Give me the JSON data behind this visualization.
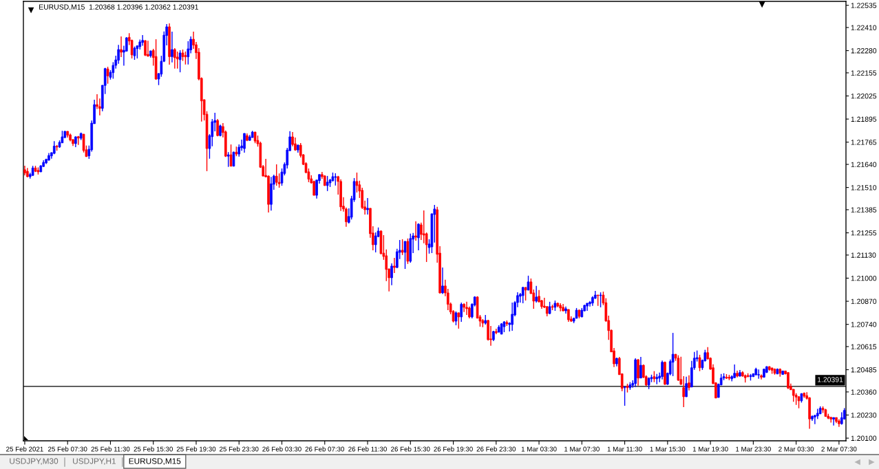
{
  "chart_data": {
    "type": "candlestick",
    "title": "EURUSD,M15  1.20368 1.20396 1.20362 1.20391",
    "categories": [
      "25 Feb 2021",
      null,
      null,
      null,
      null,
      null,
      null,
      null,
      null,
      null,
      null,
      null,
      null,
      null,
      null,
      null,
      "25 Feb 07:30",
      null,
      null,
      null,
      null,
      null,
      null,
      null,
      null,
      null,
      null,
      null,
      null,
      null,
      null,
      null,
      "25 Feb 11:30",
      null,
      null,
      null,
      null,
      null,
      null,
      null,
      null,
      null,
      null,
      null,
      null,
      null,
      null,
      null,
      "25 Feb 15:30",
      null,
      null,
      null,
      null,
      null,
      null,
      null,
      null,
      null,
      null,
      null,
      null,
      null,
      null,
      null,
      "25 Feb 19:30",
      null,
      null,
      null,
      null,
      null,
      null,
      null,
      null,
      null,
      null,
      null,
      null,
      null,
      null,
      null,
      "25 Feb 23:30",
      null,
      null,
      null,
      null,
      null,
      null,
      null,
      null,
      null,
      null,
      null,
      null,
      null,
      null,
      null,
      "26 Feb 03:30",
      null,
      null,
      null,
      null,
      null,
      null,
      null,
      null,
      null,
      null,
      null,
      null,
      null,
      null,
      null,
      "26 Feb 07:30",
      null,
      null,
      null,
      null,
      null,
      null,
      null,
      null,
      null,
      null,
      null,
      null,
      null,
      null,
      null,
      "26 Feb 11:30",
      null,
      null,
      null,
      null,
      null,
      null,
      null,
      null,
      null,
      null,
      null,
      null,
      null,
      null,
      null,
      "26 Feb 15:30",
      null,
      null,
      null,
      null,
      null,
      null,
      null,
      null,
      null,
      null,
      null,
      null,
      null,
      null,
      null,
      "26 Feb 19:30",
      null,
      null,
      null,
      null,
      null,
      null,
      null,
      null,
      null,
      null,
      null,
      null,
      null,
      null,
      null,
      "26 Feb 23:30",
      null,
      null,
      null,
      null,
      null,
      null,
      null,
      null,
      null,
      null,
      null,
      null,
      null,
      null,
      null,
      "1 Mar 03:30",
      null,
      null,
      null,
      null,
      null,
      null,
      null,
      null,
      null,
      null,
      null,
      null,
      null,
      null,
      null,
      "1 Mar 07:30",
      null,
      null,
      null,
      null,
      null,
      null,
      null,
      null,
      null,
      null,
      null,
      null,
      null,
      null,
      null,
      "1 Mar 11:30",
      null,
      null,
      null,
      null,
      null,
      null,
      null,
      null,
      null,
      null,
      null,
      null,
      null,
      null,
      null,
      "1 Mar 15:30",
      null,
      null,
      null,
      null,
      null,
      null,
      null,
      null,
      null,
      null,
      null,
      null,
      null,
      null,
      null,
      "1 Mar 19:30",
      null,
      null,
      null,
      null,
      null,
      null,
      null,
      null,
      null,
      null,
      null,
      null,
      null,
      null,
      null,
      "1 Mar 23:30",
      null,
      null,
      null,
      null,
      null,
      null,
      null,
      null,
      null,
      null,
      null,
      null,
      null,
      null,
      null,
      "2 Mar 03:30",
      null,
      null,
      null,
      null,
      null,
      null,
      null,
      null,
      null,
      null,
      null,
      null,
      null,
      null,
      null,
      "2 Mar 07:30",
      null,
      null
    ],
    "ohlc": [
      [
        1.2161,
        1.21632,
        1.21578,
        1.21591
      ],
      [
        1.21601,
        1.2162,
        1.21568,
        1.21571
      ],
      [
        1.21571,
        1.21593,
        1.2156,
        1.21583
      ],
      [
        1.21578,
        1.21632,
        1.21575,
        1.2162
      ],
      [
        1.2162,
        1.21632,
        1.21597,
        1.21601
      ],
      [
        1.21606,
        1.21623,
        1.21583,
        1.21598
      ],
      [
        1.21598,
        1.21635,
        1.21597,
        1.21632
      ],
      [
        1.21628,
        1.21663,
        1.21626,
        1.21651
      ],
      [
        1.21648,
        1.21672,
        1.21642,
        1.21668
      ],
      [
        1.21664,
        1.21704,
        1.2166,
        1.2169
      ],
      [
        1.21688,
        1.21708,
        1.21672,
        1.21706
      ],
      [
        1.21702,
        1.21771,
        1.21697,
        1.21743
      ],
      [
        1.21742,
        1.21749,
        1.21717,
        1.21738
      ],
      [
        1.21738,
        1.21775,
        1.21733,
        1.21764
      ],
      [
        1.21761,
        1.21829,
        1.2176,
        1.21795
      ],
      [
        1.21791,
        1.21828,
        1.21787,
        1.21826
      ],
      [
        1.21826,
        1.21827,
        1.21791,
        1.21804
      ],
      [
        1.21806,
        1.21813,
        1.2177,
        1.21777
      ],
      [
        1.21779,
        1.21783,
        1.21744,
        1.21757
      ],
      [
        1.21757,
        1.21798,
        1.21737,
        1.21795
      ],
      [
        1.21796,
        1.218,
        1.21749,
        1.21788
      ],
      [
        1.21787,
        1.21819,
        1.21777,
        1.21814
      ],
      [
        1.2181,
        1.21811,
        1.21707,
        1.21718
      ],
      [
        1.21722,
        1.21746,
        1.21682,
        1.21684
      ],
      [
        1.21688,
        1.21746,
        1.21671,
        1.21725
      ],
      [
        1.21722,
        1.21887,
        1.21712,
        1.21872
      ],
      [
        1.21869,
        1.22004,
        1.21868,
        1.21976
      ],
      [
        1.21976,
        1.22035,
        1.21952,
        1.21966
      ],
      [
        1.21965,
        1.22011,
        1.21916,
        1.21955
      ],
      [
        1.21955,
        1.22086,
        1.21939,
        1.22085
      ],
      [
        1.22084,
        1.22183,
        1.22036,
        1.22179
      ],
      [
        1.22177,
        1.22189,
        1.22094,
        1.22138
      ],
      [
        1.2213,
        1.2217,
        1.22117,
        1.22158
      ],
      [
        1.22156,
        1.22215,
        1.22122,
        1.22197
      ],
      [
        1.22197,
        1.22251,
        1.22179,
        1.22228
      ],
      [
        1.22226,
        1.22312,
        1.22206,
        1.22286
      ],
      [
        1.22286,
        1.2236,
        1.22244,
        1.22271
      ],
      [
        1.22271,
        1.22307,
        1.22195,
        1.22282
      ],
      [
        1.22277,
        1.22356,
        1.22275,
        1.22352
      ],
      [
        1.22355,
        1.22378,
        1.22311,
        1.22334
      ],
      [
        1.22338,
        1.22342,
        1.22236,
        1.22256
      ],
      [
        1.22251,
        1.22303,
        1.22228,
        1.22294
      ],
      [
        1.22291,
        1.22309,
        1.22236,
        1.22307
      ],
      [
        1.22302,
        1.22342,
        1.22286,
        1.22329
      ],
      [
        1.22326,
        1.22367,
        1.22307,
        1.22338
      ],
      [
        1.22336,
        1.22339,
        1.22249,
        1.22254
      ],
      [
        1.22259,
        1.22336,
        1.22246,
        1.22249
      ],
      [
        1.22251,
        1.2228,
        1.22241,
        1.22278
      ],
      [
        1.22281,
        1.2229,
        1.22195,
        1.22241
      ],
      [
        1.22247,
        1.22344,
        1.22116,
        1.2212
      ],
      [
        1.2212,
        1.22153,
        1.22086,
        1.22151
      ],
      [
        1.22148,
        1.22251,
        1.22133,
        1.2222
      ],
      [
        1.2222,
        1.22388,
        1.22216,
        1.22367
      ],
      [
        1.22365,
        1.22429,
        1.22309,
        1.22414
      ],
      [
        1.22414,
        1.22433,
        1.22201,
        1.22246
      ],
      [
        1.22246,
        1.22387,
        1.22214,
        1.22286
      ],
      [
        1.22286,
        1.22294,
        1.22179,
        1.2224
      ],
      [
        1.22244,
        1.22275,
        1.22179,
        1.22233
      ],
      [
        1.22229,
        1.22282,
        1.22158,
        1.22267
      ],
      [
        1.22267,
        1.22286,
        1.22222,
        1.22246
      ],
      [
        1.22253,
        1.22275,
        1.22202,
        1.22245
      ],
      [
        1.22245,
        1.22333,
        1.22202,
        1.2229
      ],
      [
        1.22284,
        1.2236,
        1.22265,
        1.22344
      ],
      [
        1.22344,
        1.22387,
        1.2229,
        1.22311
      ],
      [
        1.22313,
        1.22329,
        1.22233,
        1.22268
      ],
      [
        1.22271,
        1.22294,
        1.22113,
        1.2212
      ],
      [
        1.22124,
        1.2213,
        1.21881,
        1.21997
      ],
      [
        1.22004,
        1.22005,
        1.21887,
        1.2192
      ],
      [
        1.21922,
        1.21939,
        1.21602,
        1.21729
      ],
      [
        1.21729,
        1.2181,
        1.21672,
        1.21802
      ],
      [
        1.21796,
        1.21895,
        1.21742,
        1.2188
      ],
      [
        1.21876,
        1.2193,
        1.21826,
        1.21887
      ],
      [
        1.21887,
        1.21895,
        1.21798,
        1.21802
      ],
      [
        1.21802,
        1.21864,
        1.21798,
        1.21857
      ],
      [
        1.21853,
        1.21872,
        1.21792,
        1.21819
      ],
      [
        1.21823,
        1.21831,
        1.21682,
        1.21686
      ],
      [
        1.21686,
        1.21709,
        1.21626,
        1.21694
      ],
      [
        1.21694,
        1.21752,
        1.21628,
        1.2163
      ],
      [
        1.2163,
        1.21712,
        1.21628,
        1.21709
      ],
      [
        1.21709,
        1.2174,
        1.21686,
        1.21698
      ],
      [
        1.21698,
        1.21752,
        1.21684,
        1.21737
      ],
      [
        1.21733,
        1.21779,
        1.21717,
        1.21744
      ],
      [
        1.21729,
        1.21815,
        1.21706,
        1.21814
      ],
      [
        1.21802,
        1.21814,
        1.21771,
        1.21775
      ],
      [
        1.21775,
        1.21806,
        1.21774,
        1.21795
      ],
      [
        1.21791,
        1.21829,
        1.2179,
        1.21822
      ],
      [
        1.21822,
        1.21823,
        1.21759,
        1.21771
      ],
      [
        1.21775,
        1.21802,
        1.2174,
        1.21756
      ],
      [
        1.2176,
        1.21768,
        1.2162,
        1.21624
      ],
      [
        1.21628,
        1.21636,
        1.21573,
        1.21574
      ],
      [
        1.21578,
        1.21671,
        1.21568,
        1.2157
      ],
      [
        1.21574,
        1.21578,
        1.21369,
        1.21415
      ],
      [
        1.21415,
        1.2157,
        1.2138,
        1.21531
      ],
      [
        1.21528,
        1.21582,
        1.21497,
        1.21574
      ],
      [
        1.21574,
        1.2164,
        1.2152,
        1.21539
      ],
      [
        1.21539,
        1.21589,
        1.21509,
        1.21531
      ],
      [
        1.21535,
        1.21617,
        1.2152,
        1.21597
      ],
      [
        1.21589,
        1.21651,
        1.21578,
        1.2164
      ],
      [
        1.21636,
        1.21733,
        1.21617,
        1.21721
      ],
      [
        1.21717,
        1.21827,
        1.21716,
        1.21795
      ],
      [
        1.21795,
        1.21822,
        1.21742,
        1.21752
      ],
      [
        1.21756,
        1.21791,
        1.21717,
        1.21721
      ],
      [
        1.21721,
        1.21752,
        1.21706,
        1.21748
      ],
      [
        1.21748,
        1.2176,
        1.21679,
        1.2169
      ],
      [
        1.21694,
        1.21698,
        1.21636,
        1.2164
      ],
      [
        1.21645,
        1.21652,
        1.2159,
        1.21594
      ],
      [
        1.21598,
        1.21617,
        1.2154,
        1.21557
      ],
      [
        1.21559,
        1.21579,
        1.21532,
        1.21536
      ],
      [
        1.21544,
        1.21548,
        1.21465,
        1.21466
      ],
      [
        1.21466,
        1.21553,
        1.21448,
        1.21552
      ],
      [
        1.21549,
        1.21584,
        1.21532,
        1.21583
      ],
      [
        1.21583,
        1.21598,
        1.21559,
        1.21571
      ],
      [
        1.21575,
        1.21579,
        1.21519,
        1.21521
      ],
      [
        1.21521,
        1.21575,
        1.2149,
        1.2154
      ],
      [
        1.21536,
        1.21559,
        1.21513,
        1.21552
      ],
      [
        1.21548,
        1.21594,
        1.21544,
        1.21571
      ],
      [
        1.21567,
        1.2159,
        1.21521,
        1.21571
      ],
      [
        1.21571,
        1.21575,
        1.2147,
        1.21544
      ],
      [
        1.21544,
        1.21556,
        1.21378,
        1.21401
      ],
      [
        1.21405,
        1.21455,
        1.21374,
        1.21389
      ],
      [
        1.21389,
        1.21397,
        1.21289,
        1.21317
      ],
      [
        1.21314,
        1.21393,
        1.21307,
        1.21347
      ],
      [
        1.21343,
        1.21463,
        1.2133,
        1.21447
      ],
      [
        1.21441,
        1.21563,
        1.21429,
        1.21544
      ],
      [
        1.21544,
        1.21594,
        1.21482,
        1.21521
      ],
      [
        1.21525,
        1.21548,
        1.21451,
        1.2149
      ],
      [
        1.21494,
        1.21509,
        1.21389,
        1.21397
      ],
      [
        1.21401,
        1.21436,
        1.21358,
        1.21385
      ],
      [
        1.21385,
        1.21451,
        1.21358,
        1.21393
      ],
      [
        1.21393,
        1.21394,
        1.21227,
        1.2125
      ],
      [
        1.21254,
        1.21292,
        1.21157,
        1.21188
      ],
      [
        1.21188,
        1.21257,
        1.21145,
        1.21238
      ],
      [
        1.21234,
        1.21285,
        1.2123,
        1.21265
      ],
      [
        1.21265,
        1.21269,
        1.21134,
        1.21138
      ],
      [
        1.21141,
        1.21242,
        1.21103,
        1.21122
      ],
      [
        1.21126,
        1.21161,
        1.20983,
        1.21049
      ],
      [
        1.21052,
        1.21054,
        1.20925,
        1.21002
      ],
      [
        1.21002,
        1.21083,
        1.2096,
        1.21068
      ],
      [
        1.21068,
        1.21114,
        1.21029,
        1.2106
      ],
      [
        1.2106,
        1.21165,
        1.21056,
        1.21149
      ],
      [
        1.21145,
        1.21215,
        1.21107,
        1.21157
      ],
      [
        1.21157,
        1.21219,
        1.2113,
        1.21145
      ],
      [
        1.21145,
        1.21208,
        1.21052,
        1.21207
      ],
      [
        1.21207,
        1.21223,
        1.2108,
        1.21095
      ],
      [
        1.21095,
        1.2125,
        1.21087,
        1.21223
      ],
      [
        1.21219,
        1.21254,
        1.21141,
        1.21238
      ],
      [
        1.21238,
        1.2132,
        1.21211,
        1.2123
      ],
      [
        1.21227,
        1.21308,
        1.21157,
        1.21304
      ],
      [
        1.213,
        1.21312,
        1.21215,
        1.21246
      ],
      [
        1.2125,
        1.21381,
        1.21196,
        1.21242
      ],
      [
        1.2125,
        1.21257,
        1.21091,
        1.21188
      ],
      [
        1.21172,
        1.21219,
        1.21138,
        1.21192
      ],
      [
        1.21176,
        1.21363,
        1.21141,
        1.21362
      ],
      [
        1.21358,
        1.21412,
        1.212,
        1.21389
      ],
      [
        1.21385,
        1.21401,
        1.21087,
        1.21134
      ],
      [
        1.21141,
        1.2118,
        1.20913,
        1.20917
      ],
      [
        1.20917,
        1.2106,
        1.20911,
        1.20956
      ],
      [
        1.20956,
        1.20991,
        1.20898,
        1.20917
      ],
      [
        1.20917,
        1.2094,
        1.2082,
        1.20853
      ],
      [
        1.20855,
        1.20863,
        1.20797,
        1.2081
      ],
      [
        1.20813,
        1.2082,
        1.20751,
        1.20758
      ],
      [
        1.20758,
        1.20813,
        1.20735,
        1.20805
      ],
      [
        1.20805,
        1.20806,
        1.20716,
        1.20782
      ],
      [
        1.20782,
        1.20863,
        1.20754,
        1.20853
      ],
      [
        1.20853,
        1.20859,
        1.20809,
        1.20836
      ],
      [
        1.20836,
        1.20867,
        1.20793,
        1.20828
      ],
      [
        1.20832,
        1.2084,
        1.20774,
        1.20782
      ],
      [
        1.20782,
        1.20859,
        1.20774,
        1.20853
      ],
      [
        1.20849,
        1.20898,
        1.20841,
        1.20894
      ],
      [
        1.20894,
        1.20898,
        1.20773,
        1.20775
      ],
      [
        1.20782,
        1.20793,
        1.20727,
        1.20758
      ],
      [
        1.20762,
        1.2077,
        1.20724,
        1.20747
      ],
      [
        1.20747,
        1.20793,
        1.20739,
        1.20762
      ],
      [
        1.20762,
        1.20766,
        1.20649,
        1.20654
      ],
      [
        1.20658,
        1.20731,
        1.2062,
        1.20654
      ],
      [
        1.20654,
        1.20704,
        1.20646,
        1.207
      ],
      [
        1.207,
        1.20716,
        1.20685,
        1.20693
      ],
      [
        1.20696,
        1.20735,
        1.20695,
        1.20724
      ],
      [
        1.20685,
        1.20747,
        1.20684,
        1.20743
      ],
      [
        1.20727,
        1.20758,
        1.20696,
        1.20754
      ],
      [
        1.20751,
        1.20762,
        1.20731,
        1.20743
      ],
      [
        1.20739,
        1.20751,
        1.207,
        1.20747
      ],
      [
        1.20739,
        1.20863,
        1.20704,
        1.20797
      ],
      [
        1.20793,
        1.20871,
        1.20785,
        1.20863
      ],
      [
        1.20863,
        1.20921,
        1.20836,
        1.20902
      ],
      [
        1.20898,
        1.20917,
        1.20863,
        1.20909
      ],
      [
        1.20902,
        1.20952,
        1.20859,
        1.20948
      ],
      [
        1.20948,
        1.20949,
        1.20874,
        1.20933
      ],
      [
        1.20933,
        1.21014,
        1.20931,
        1.20979
      ],
      [
        1.20979,
        1.20998,
        1.20912,
        1.20913
      ],
      [
        1.20917,
        1.20936,
        1.20828,
        1.20871
      ],
      [
        1.20871,
        1.20956,
        1.20863,
        1.20894
      ],
      [
        1.20898,
        1.20933,
        1.20863,
        1.20867
      ],
      [
        1.20874,
        1.20878,
        1.20828,
        1.2084
      ],
      [
        1.20843,
        1.2089,
        1.20832,
        1.20836
      ],
      [
        1.2084,
        1.20843,
        1.20785,
        1.20801
      ],
      [
        1.20801,
        1.20867,
        1.20797,
        1.2084
      ],
      [
        1.2084,
        1.20851,
        1.2082,
        1.20836
      ],
      [
        1.20836,
        1.20874,
        1.20816,
        1.20859
      ],
      [
        1.20859,
        1.20863,
        1.20836,
        1.20843
      ],
      [
        1.20847,
        1.20859,
        1.20813,
        1.20832
      ],
      [
        1.20836,
        1.20855,
        1.20813,
        1.20816
      ],
      [
        1.20816,
        1.2084,
        1.20801,
        1.20828
      ],
      [
        1.20824,
        1.20825,
        1.20754,
        1.20766
      ],
      [
        1.2077,
        1.20785,
        1.20754,
        1.20758
      ],
      [
        1.20758,
        1.20778,
        1.20747,
        1.20774
      ],
      [
        1.20774,
        1.20832,
        1.20773,
        1.2082
      ],
      [
        1.2082,
        1.20824,
        1.20774,
        1.20785
      ],
      [
        1.20782,
        1.20832,
        1.2078,
        1.2082
      ],
      [
        1.20816,
        1.20851,
        1.20813,
        1.20847
      ],
      [
        1.20843,
        1.2086,
        1.20816,
        1.20859
      ],
      [
        1.20856,
        1.20871,
        1.2084,
        1.20864
      ],
      [
        1.2086,
        1.20898,
        1.20844,
        1.20891
      ],
      [
        1.20887,
        1.20928,
        1.20883,
        1.20905
      ],
      [
        1.20905,
        1.20906,
        1.20844,
        1.20902
      ],
      [
        1.20902,
        1.2092,
        1.20836,
        1.20905
      ],
      [
        1.20905,
        1.20924,
        1.20848,
        1.2086
      ],
      [
        1.20862,
        1.20887,
        1.20755,
        1.20759
      ],
      [
        1.20762,
        1.20789,
        1.20653,
        1.20705
      ],
      [
        1.20707,
        1.20711,
        1.20584,
        1.20585
      ],
      [
        1.20591,
        1.20607,
        1.205,
        1.20518
      ],
      [
        1.20518,
        1.20553,
        1.20504,
        1.20549
      ],
      [
        1.20549,
        1.20557,
        1.20456,
        1.20457
      ],
      [
        1.20462,
        1.20464,
        1.20364,
        1.2038
      ],
      [
        1.20384,
        1.2039,
        1.20282,
        1.20388
      ],
      [
        1.20393,
        1.20406,
        1.20357,
        1.20384
      ],
      [
        1.20384,
        1.20415,
        1.20372,
        1.204
      ],
      [
        1.20398,
        1.20425,
        1.20384,
        1.20409
      ],
      [
        1.20407,
        1.20549,
        1.20388,
        1.20541
      ],
      [
        1.20541,
        1.20545,
        1.20395,
        1.20438
      ],
      [
        1.20438,
        1.20557,
        1.20437,
        1.2051
      ],
      [
        1.2051,
        1.20514,
        1.20438,
        1.20442
      ],
      [
        1.20446,
        1.20453,
        1.20394,
        1.20399
      ],
      [
        1.20399,
        1.20442,
        1.20376,
        1.20437
      ],
      [
        1.20434,
        1.20457,
        1.20415,
        1.20442
      ],
      [
        1.20446,
        1.20477,
        1.20415,
        1.20434
      ],
      [
        1.20434,
        1.20461,
        1.20403,
        1.20442
      ],
      [
        1.20438,
        1.20469,
        1.20415,
        1.20449
      ],
      [
        1.20446,
        1.20537,
        1.2043,
        1.20527
      ],
      [
        1.20527,
        1.20531,
        1.20399,
        1.20403
      ],
      [
        1.20403,
        1.20469,
        1.20399,
        1.20465
      ],
      [
        1.20461,
        1.20542,
        1.20453,
        1.20531
      ],
      [
        1.20527,
        1.20692,
        1.20449,
        1.20572
      ],
      [
        1.20572,
        1.20573,
        1.20535,
        1.2055
      ],
      [
        1.2055,
        1.20566,
        1.20422,
        1.20426
      ],
      [
        1.2043,
        1.20558,
        1.20399,
        1.20403
      ],
      [
        1.20384,
        1.20449,
        1.20275,
        1.20333
      ],
      [
        1.20333,
        1.20446,
        1.20332,
        1.20407
      ],
      [
        1.20411,
        1.20453,
        1.20368,
        1.20384
      ],
      [
        1.20388,
        1.20535,
        1.20386,
        1.20496
      ],
      [
        1.20496,
        1.20585,
        1.20484,
        1.2055
      ],
      [
        1.20546,
        1.20593,
        1.20531,
        1.20553
      ],
      [
        1.20553,
        1.20569,
        1.20477,
        1.20496
      ],
      [
        1.20496,
        1.20542,
        1.20484,
        1.20538
      ],
      [
        1.20535,
        1.20597,
        1.20531,
        1.20581
      ],
      [
        1.20581,
        1.20612,
        1.20542,
        1.20546
      ],
      [
        1.2055,
        1.20554,
        1.20484,
        1.20488
      ],
      [
        1.20496,
        1.20515,
        1.20403,
        1.20407
      ],
      [
        1.20411,
        1.20415,
        1.20324,
        1.20326
      ],
      [
        1.20329,
        1.20407,
        1.20328,
        1.20403
      ],
      [
        1.20399,
        1.20461,
        1.20398,
        1.20438
      ],
      [
        1.20438,
        1.20465,
        1.20426,
        1.20446
      ],
      [
        1.20443,
        1.2046,
        1.20433,
        1.20437
      ],
      [
        1.20443,
        1.20456,
        1.20426,
        1.20437
      ],
      [
        1.20434,
        1.20453,
        1.2042,
        1.20446
      ],
      [
        1.2044,
        1.20514,
        1.20437,
        1.20465
      ],
      [
        1.20465,
        1.2048,
        1.20442,
        1.20449
      ],
      [
        1.20449,
        1.20483,
        1.20446,
        1.20469
      ],
      [
        1.20469,
        1.20477,
        1.20446,
        1.20449
      ],
      [
        1.20452,
        1.20458,
        1.20413,
        1.2044
      ],
      [
        1.20452,
        1.20465,
        1.20442,
        1.20447
      ],
      [
        1.20446,
        1.20461,
        1.20424,
        1.20452
      ],
      [
        1.20446,
        1.20465,
        1.20444,
        1.20462
      ],
      [
        1.20456,
        1.20496,
        1.20453,
        1.20488
      ],
      [
        1.20455,
        1.20486,
        1.20434,
        1.20458
      ],
      [
        1.20451,
        1.20458,
        1.2043,
        1.20443
      ],
      [
        1.20443,
        1.20491,
        1.2044,
        1.20488
      ],
      [
        1.2047,
        1.20505,
        1.20466,
        1.20502
      ],
      [
        1.20502,
        1.20505,
        1.2048,
        1.20486
      ],
      [
        1.20495,
        1.20496,
        1.20462,
        1.20482
      ],
      [
        1.20488,
        1.20492,
        1.20457,
        1.20465
      ],
      [
        1.20461,
        1.20492,
        1.2046,
        1.20488
      ],
      [
        1.20488,
        1.20492,
        1.20446,
        1.20465
      ],
      [
        1.20458,
        1.2048,
        1.20456,
        1.20478
      ],
      [
        1.20478,
        1.20479,
        1.20458,
        1.20462
      ],
      [
        1.20469,
        1.20471,
        1.20376,
        1.20382
      ],
      [
        1.20391,
        1.20407,
        1.20371,
        1.20372
      ],
      [
        1.20375,
        1.20376,
        1.20305,
        1.2034
      ],
      [
        1.20342,
        1.20353,
        1.20287,
        1.20331
      ],
      [
        1.20333,
        1.20336,
        1.20268,
        1.2031
      ],
      [
        1.2031,
        1.20353,
        1.203,
        1.2035
      ],
      [
        1.20353,
        1.20357,
        1.20327,
        1.20336
      ],
      [
        1.20339,
        1.20359,
        1.20317,
        1.20324
      ],
      [
        1.20327,
        1.20331,
        1.20153,
        1.20208
      ],
      [
        1.20208,
        1.20228,
        1.20197,
        1.20222
      ],
      [
        1.20219,
        1.20231,
        1.20179,
        1.20228
      ],
      [
        1.20225,
        1.20265,
        1.20208,
        1.2024
      ],
      [
        1.20237,
        1.20279,
        1.20235,
        1.20268
      ],
      [
        1.20268,
        1.20279,
        1.20242,
        1.20259
      ],
      [
        1.2026,
        1.20265,
        1.2022,
        1.20222
      ],
      [
        1.20224,
        1.20237,
        1.20207,
        1.20212
      ],
      [
        1.20217,
        1.2022,
        1.20188,
        1.20207
      ],
      [
        1.20207,
        1.20217,
        1.20171,
        1.20216
      ],
      [
        1.20216,
        1.20217,
        1.20185,
        1.20194
      ],
      [
        1.20197,
        1.20207,
        1.20163,
        1.20181
      ],
      [
        1.20181,
        1.20246,
        1.20176,
        1.20215
      ],
      [
        1.20208,
        1.20269,
        1.20204,
        1.20256
      ]
    ],
    "colors": [
      "#ff0000",
      "#ff0000",
      "#0000ff",
      "#0000ff",
      "#ff0000",
      "#ff0000",
      "#0000ff",
      "#0000ff",
      "#0000ff",
      "#0000ff",
      "#0000ff",
      "#0000ff",
      "#ff0000",
      "#0000ff",
      "#0000ff",
      "#0000ff",
      "#ff0000",
      "#ff0000",
      "#ff0000",
      "#0000ff",
      "#ff0000",
      "#0000ff",
      "#ff0000",
      "#ff0000",
      "#0000ff",
      "#0000ff",
      "#0000ff",
      "#ff0000",
      "#ff0000",
      "#0000ff",
      "#0000ff",
      "#ff0000",
      "#0000ff",
      "#0000ff",
      "#0000ff",
      "#0000ff",
      "#ff0000",
      "#0000ff",
      "#0000ff",
      "#ff0000",
      "#ff0000",
      "#0000ff",
      "#0000ff",
      "#0000ff",
      "#0000ff",
      "#ff0000",
      "#ff0000",
      "#0000ff",
      "#ff0000",
      "#ff0000",
      "#0000ff",
      "#0000ff",
      "#0000ff",
      "#0000ff",
      "#ff0000",
      "#0000ff",
      "#ff0000",
      "#ff0000",
      "#0000ff",
      "#ff0000",
      "#ff0000",
      "#0000ff",
      "#0000ff",
      "#ff0000",
      "#ff0000",
      "#ff0000",
      "#ff0000",
      "#ff0000",
      "#ff0000",
      "#0000ff",
      "#0000ff",
      "#0000ff",
      "#ff0000",
      "#0000ff",
      "#ff0000",
      "#ff0000",
      "#0000ff",
      "#ff0000",
      "#0000ff",
      "#ff0000",
      "#0000ff",
      "#0000ff",
      "#0000ff",
      "#ff0000",
      "#0000ff",
      "#0000ff",
      "#ff0000",
      "#ff0000",
      "#ff0000",
      "#ff0000",
      "#ff0000",
      "#ff0000",
      "#0000ff",
      "#0000ff",
      "#ff0000",
      "#ff0000",
      "#0000ff",
      "#0000ff",
      "#0000ff",
      "#0000ff",
      "#ff0000",
      "#ff0000",
      "#0000ff",
      "#ff0000",
      "#ff0000",
      "#ff0000",
      "#ff0000",
      "#ff0000",
      "#ff0000",
      "#0000ff",
      "#0000ff",
      "#ff0000",
      "#ff0000",
      "#0000ff",
      "#0000ff",
      "#0000ff",
      "#0000ff",
      "#ff0000",
      "#ff0000",
      "#ff0000",
      "#ff0000",
      "#0000ff",
      "#0000ff",
      "#0000ff",
      "#ff0000",
      "#ff0000",
      "#ff0000",
      "#ff0000",
      "#0000ff",
      "#ff0000",
      "#ff0000",
      "#0000ff",
      "#0000ff",
      "#ff0000",
      "#ff0000",
      "#ff0000",
      "#ff0000",
      "#0000ff",
      "#ff0000",
      "#0000ff",
      "#0000ff",
      "#ff0000",
      "#0000ff",
      "#ff0000",
      "#0000ff",
      "#0000ff",
      "#ff0000",
      "#0000ff",
      "#ff0000",
      "#ff0000",
      "#ff0000",
      "#0000ff",
      "#0000ff",
      "#0000ff",
      "#ff0000",
      "#ff0000",
      "#0000ff",
      "#ff0000",
      "#ff0000",
      "#ff0000",
      "#ff0000",
      "#0000ff",
      "#ff0000",
      "#0000ff",
      "#ff0000",
      "#ff0000",
      "#ff0000",
      "#0000ff",
      "#0000ff",
      "#ff0000",
      "#ff0000",
      "#ff0000",
      "#0000ff",
      "#ff0000",
      "#ff0000",
      "#0000ff",
      "#ff0000",
      "#0000ff",
      "#0000ff",
      "#0000ff",
      "#ff0000",
      "#0000ff",
      "#0000ff",
      "#0000ff",
      "#0000ff",
      "#0000ff",
      "#0000ff",
      "#ff0000",
      "#0000ff",
      "#ff0000",
      "#ff0000",
      "#0000ff",
      "#ff0000",
      "#ff0000",
      "#ff0000",
      "#ff0000",
      "#0000ff",
      "#ff0000",
      "#0000ff",
      "#ff0000",
      "#ff0000",
      "#ff0000",
      "#0000ff",
      "#ff0000",
      "#ff0000",
      "#0000ff",
      "#0000ff",
      "#ff0000",
      "#0000ff",
      "#0000ff",
      "#0000ff",
      "#0000ff",
      "#0000ff",
      "#0000ff",
      "#ff0000",
      "#0000ff",
      "#ff0000",
      "#ff0000",
      "#ff0000",
      "#ff0000",
      "#ff0000",
      "#0000ff",
      "#ff0000",
      "#ff0000",
      "#0000ff",
      "#ff0000",
      "#0000ff",
      "#0000ff",
      "#0000ff",
      "#ff0000",
      "#0000ff",
      "#ff0000",
      "#ff0000",
      "#0000ff",
      "#0000ff",
      "#ff0000",
      "#0000ff",
      "#0000ff",
      "#0000ff",
      "#ff0000",
      "#0000ff",
      "#0000ff",
      "#0000ff",
      "#ff0000",
      "#ff0000",
      "#ff0000",
      "#ff0000",
      "#0000ff",
      "#ff0000",
      "#0000ff",
      "#0000ff",
      "#0000ff",
      "#ff0000",
      "#0000ff",
      "#0000ff",
      "#ff0000",
      "#ff0000",
      "#ff0000",
      "#ff0000",
      "#0000ff",
      "#0000ff",
      "#0000ff",
      "#ff0000",
      "#ff0000",
      "#0000ff",
      "#0000ff",
      "#ff0000",
      "#0000ff",
      "#ff0000",
      "#ff0000",
      "#ff0000",
      "#0000ff",
      "#0000ff",
      "#0000ff",
      "#0000ff",
      "#ff0000",
      "#0000ff",
      "#0000ff",
      "#ff0000",
      "#ff0000",
      "#ff0000",
      "#0000ff",
      "#ff0000",
      "#0000ff",
      "#ff0000",
      "#ff0000",
      "#ff0000",
      "#ff0000",
      "#ff0000",
      "#ff0000",
      "#0000ff",
      "#ff0000",
      "#ff0000",
      "#ff0000",
      "#0000ff",
      "#0000ff",
      "#0000ff",
      "#0000ff",
      "#ff0000",
      "#ff0000",
      "#ff0000",
      "#ff0000",
      "#0000ff",
      "#ff0000",
      "#ff0000",
      "#0000ff",
      "#0000ff"
    ],
    "ylim": [
      1.20085,
      1.22557
    ],
    "yticks": [
      {
        "value": 1.201,
        "label": "1.20100"
      },
      {
        "value": 1.2023,
        "label": "1.20230"
      },
      {
        "value": 1.2036,
        "label": "1.20360"
      },
      1.20485,
      1.20615,
      {
        "value": 1.2074,
        "label": "1.20740"
      },
      {
        "value": 1.2087,
        "label": "1.20870"
      },
      {
        "value": 1.21,
        "label": "1.21000"
      },
      {
        "value": 1.2113,
        "label": "1.21130"
      },
      1.21255,
      1.21385,
      {
        "value": 1.2151,
        "label": "1.21510"
      },
      {
        "value": 1.2164,
        "label": "1.21640"
      },
      1.21765,
      1.21895,
      1.22025,
      1.22155,
      {
        "value": 1.2228,
        "label": "1.22280"
      },
      {
        "value": 1.2241,
        "label": "1.22410"
      },
      1.22535
    ],
    "ref_lines": [
      {
        "axis": "y",
        "value": 1.20391,
        "label": "1.20391",
        "color": "#000000"
      }
    ],
    "annotations": [
      "USDJPY,M30",
      "USDJPY,H1",
      "EURUSD,M15"
    ]
  }
}
